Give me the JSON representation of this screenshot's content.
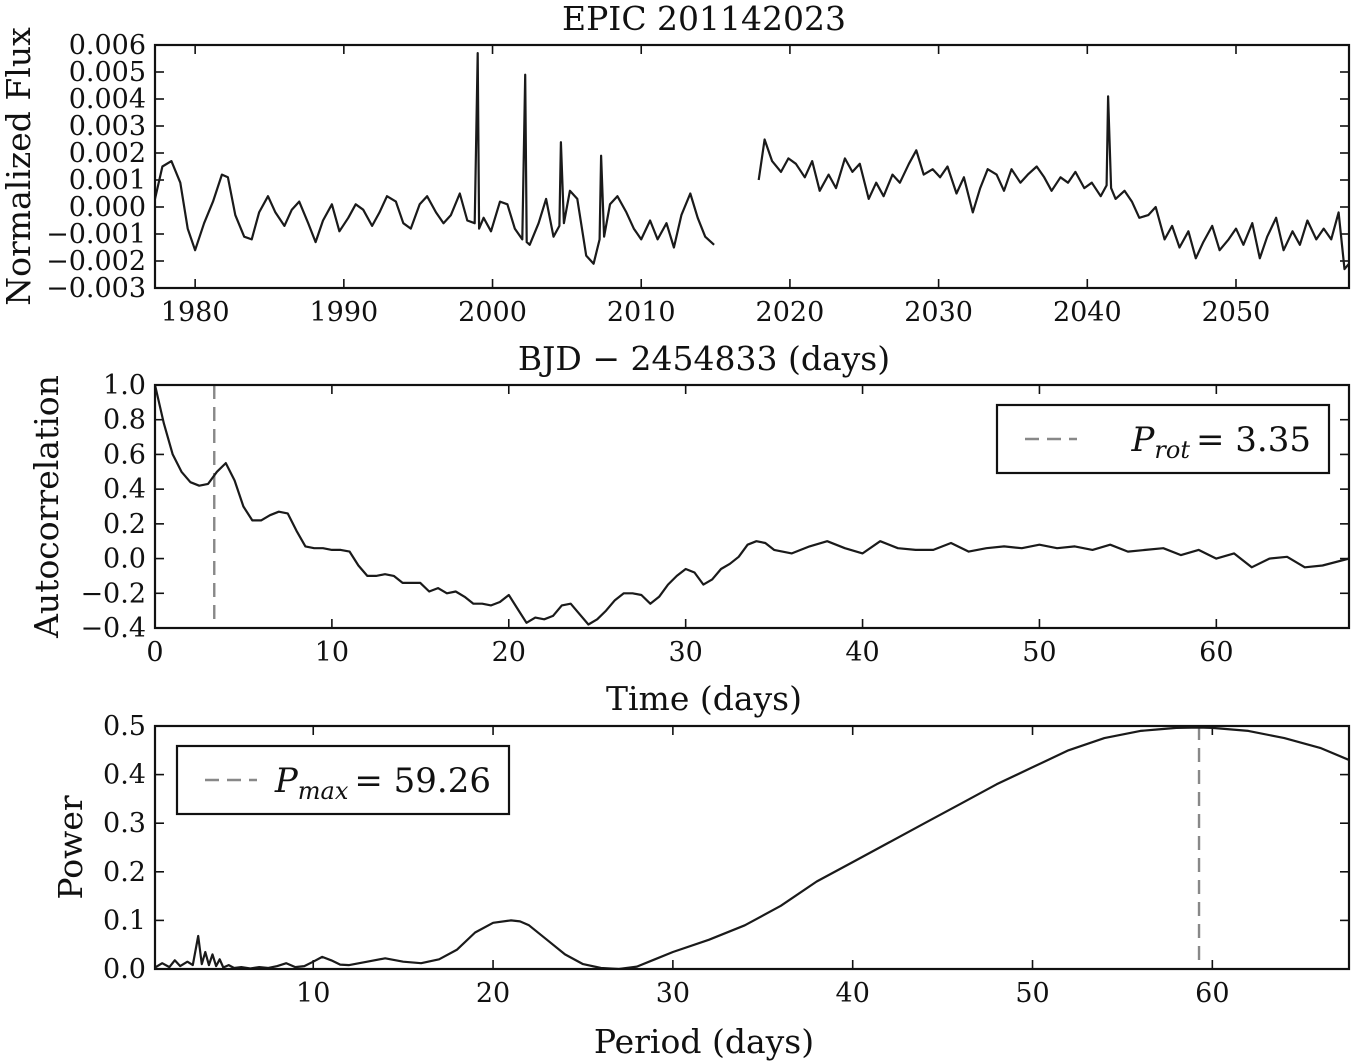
{
  "chart_data": [
    {
      "type": "line",
      "title": "EPIC 201142023",
      "xlabel": "BJD − 2454833 (days)",
      "ylabel": "Normalized Flux",
      "xlim": [
        1977.3,
        2057.6
      ],
      "ylim": [
        -0.003,
        0.006
      ],
      "xticks": [
        1980,
        1990,
        2000,
        2010,
        2020,
        2030,
        2040,
        2050
      ],
      "xtick_labels": [
        "1980",
        "1990",
        "2000",
        "2010",
        "2020",
        "2030",
        "2040",
        "2050"
      ],
      "yticks": [
        -0.003,
        -0.002,
        -0.001,
        0.0,
        0.001,
        0.002,
        0.003,
        0.004,
        0.005,
        0.006
      ],
      "ytick_labels": [
        "−0.003",
        "−0.002",
        "−0.001",
        "0.000",
        "0.001",
        "0.002",
        "0.003",
        "0.004",
        "0.005",
        "0.006"
      ],
      "series": [
        {
          "segments": [
            {
              "x": [
                1977.3,
                1977.8,
                1978.4,
                1979.0,
                1979.5,
                1980.0,
                1980.6,
                1981.2,
                1981.8,
                1982.2,
                1982.7,
                1983.3,
                1983.8,
                1984.3,
                1984.9,
                1985.4,
                1986.0,
                1986.5,
                1987.0,
                1987.6,
                1988.1,
                1988.6,
                1989.2,
                1989.7,
                1990.3,
                1990.8,
                1991.3,
                1991.9,
                1992.4,
                1992.9,
                1993.5,
                1994.0,
                1994.5,
                1995.1,
                1995.6,
                1996.2,
                1996.7,
                1997.2,
                1997.8,
                1998.3,
                1998.8,
                1999.0,
                1999.1,
                1999.4,
                1999.9,
                2000.5,
                2001.0,
                2001.5,
                2002.0,
                2002.2,
                2002.3,
                2002.5,
                2003.1,
                2003.6,
                2004.1,
                2004.5,
                2004.6,
                2004.8,
                2005.2,
                2005.7,
                2006.3,
                2006.8,
                2007.2,
                2007.3,
                2007.5,
                2007.9,
                2008.4,
                2009.0,
                2009.5,
                2010.0,
                2010.6,
                2011.1,
                2011.7,
                2012.2,
                2012.7,
                2013.3,
                2013.8,
                2014.3,
                2014.9
              ],
              "y": [
                0.0003,
                0.0015,
                0.0017,
                0.0009,
                -0.0008,
                -0.0016,
                -0.0006,
                0.0002,
                0.0012,
                0.0011,
                -0.0003,
                -0.0011,
                -0.0012,
                -0.0002,
                0.0004,
                -0.0002,
                -0.0007,
                -0.0001,
                0.0002,
                -0.0006,
                -0.0013,
                -0.0005,
                0.0001,
                -0.0009,
                -0.0004,
                0.0001,
                -0.0001,
                -0.0007,
                -0.0002,
                0.0004,
                0.0002,
                -0.0006,
                -0.0008,
                0.0001,
                0.0004,
                -0.0002,
                -0.0006,
                -0.0003,
                0.0005,
                -0.0005,
                -0.0006,
                0.0057,
                -0.0008,
                -0.0004,
                -0.0009,
                0.0002,
                0.0001,
                -0.0008,
                -0.0012,
                0.0049,
                -0.0013,
                -0.0014,
                -0.0006,
                0.0003,
                -0.0011,
                -0.0007,
                0.0024,
                -0.0006,
                0.0006,
                0.0003,
                -0.0018,
                -0.0021,
                -0.0012,
                0.0019,
                -0.0011,
                0.0001,
                0.0004,
                -0.0002,
                -0.0008,
                -0.0012,
                -0.0005,
                -0.0012,
                -0.0006,
                -0.0015,
                -0.0003,
                0.0005,
                -0.0004,
                -0.0011,
                -0.0014
              ]
            },
            {
              "x": [
                2017.9,
                2018.3,
                2018.8,
                2019.4,
                2019.9,
                2020.4,
                2021.0,
                2021.5,
                2022.0,
                2022.6,
                2023.1,
                2023.7,
                2024.2,
                2024.7,
                2025.3,
                2025.8,
                2026.3,
                2026.9,
                2027.4,
                2028.0,
                2028.5,
                2029.0,
                2029.6,
                2030.1,
                2030.6,
                2031.2,
                2031.7,
                2032.3,
                2032.8,
                2033.3,
                2033.9,
                2034.4,
                2034.9,
                2035.5,
                2036.0,
                2036.6,
                2037.1,
                2037.6,
                2038.2,
                2038.7,
                2039.2,
                2039.8,
                2040.3,
                2040.9,
                2041.3,
                2041.4,
                2041.6,
                2041.9,
                2042.5,
                2043.0,
                2043.5,
                2044.1,
                2044.6,
                2045.2,
                2045.7,
                2046.2,
                2046.8,
                2047.3,
                2047.8,
                2048.4,
                2048.9,
                2049.5,
                2050.0,
                2050.5,
                2051.1,
                2051.6,
                2052.1,
                2052.7,
                2053.2,
                2053.8,
                2054.3,
                2054.8,
                2055.4,
                2055.9,
                2056.4,
                2056.9,
                2057.3,
                2057.6
              ],
              "y": [
                0.001,
                0.0025,
                0.0017,
                0.0013,
                0.0018,
                0.0016,
                0.0011,
                0.0017,
                0.0006,
                0.0012,
                0.0007,
                0.0018,
                0.0013,
                0.0016,
                0.0003,
                0.0009,
                0.0004,
                0.0012,
                0.0009,
                0.0016,
                0.0021,
                0.0012,
                0.0014,
                0.0011,
                0.0015,
                0.0005,
                0.0011,
                -0.0002,
                0.0007,
                0.0014,
                0.0012,
                0.0006,
                0.0014,
                0.0009,
                0.0012,
                0.0015,
                0.0011,
                0.0006,
                0.0011,
                0.0009,
                0.0013,
                0.0007,
                0.0009,
                0.0004,
                0.0008,
                0.0041,
                0.0007,
                0.0003,
                0.0006,
                0.0002,
                -0.0004,
                -0.0003,
                0.0,
                -0.0012,
                -0.0007,
                -0.0015,
                -0.0009,
                -0.0019,
                -0.0013,
                -0.0007,
                -0.0016,
                -0.0012,
                -0.0008,
                -0.0014,
                -0.0006,
                -0.0019,
                -0.0011,
                -0.0004,
                -0.0016,
                -0.0009,
                -0.0014,
                -0.0005,
                -0.0012,
                -0.0008,
                -0.0012,
                -0.0002,
                -0.0023,
                -0.0021
              ]
            }
          ]
        }
      ]
    },
    {
      "type": "line",
      "xlabel": "Time (days)",
      "ylabel": "Autocorrelation",
      "xlim": [
        0,
        67.5
      ],
      "ylim": [
        -0.4,
        1.0
      ],
      "xticks": [
        0,
        10,
        20,
        30,
        40,
        50,
        60
      ],
      "xtick_labels": [
        "0",
        "10",
        "20",
        "30",
        "40",
        "50",
        "60"
      ],
      "yticks": [
        -0.4,
        -0.2,
        0.0,
        0.2,
        0.4,
        0.6,
        0.8,
        1.0
      ],
      "ytick_labels": [
        "−0.4",
        "−0.2",
        "0.0",
        "0.2",
        "0.4",
        "0.6",
        "0.8",
        "1.0"
      ],
      "series": [
        {
          "x": [
            0,
            0.5,
            1.0,
            1.5,
            2.0,
            2.5,
            3.0,
            3.5,
            4.0,
            4.5,
            5.0,
            5.5,
            6.0,
            6.5,
            7.0,
            7.5,
            8.0,
            8.5,
            9.0,
            9.5,
            10.0,
            10.5,
            11.0,
            11.5,
            12.0,
            12.5,
            13.0,
            13.5,
            14.0,
            14.5,
            15.0,
            15.5,
            16.0,
            16.5,
            17.0,
            17.5,
            18.0,
            18.5,
            19.0,
            19.5,
            20.0,
            20.5,
            21.0,
            21.5,
            22.0,
            22.5,
            23.0,
            23.5,
            24.0,
            24.5,
            25.0,
            25.5,
            26.0,
            26.5,
            27.0,
            27.5,
            28.0,
            28.5,
            29.0,
            29.5,
            30.0,
            30.5,
            31.0,
            31.5,
            32.0,
            32.5,
            33.0,
            33.5,
            34.0,
            34.5,
            35.0,
            36.0,
            37.0,
            38.0,
            39.0,
            40.0,
            41.0,
            42.0,
            43.0,
            44.0,
            45.0,
            46.0,
            47.0,
            48.0,
            49.0,
            50.0,
            51.0,
            52.0,
            53.0,
            54.0,
            55.0,
            56.0,
            57.0,
            58.0,
            59.0,
            60.0,
            61.0,
            62.0,
            63.0,
            64.0,
            65.0,
            66.0,
            67.5
          ],
          "y": [
            1.0,
            0.78,
            0.6,
            0.5,
            0.44,
            0.42,
            0.43,
            0.5,
            0.55,
            0.45,
            0.3,
            0.22,
            0.22,
            0.25,
            0.27,
            0.26,
            0.16,
            0.07,
            0.06,
            0.06,
            0.05,
            0.05,
            0.04,
            -0.04,
            -0.1,
            -0.1,
            -0.09,
            -0.1,
            -0.14,
            -0.14,
            -0.14,
            -0.19,
            -0.17,
            -0.2,
            -0.19,
            -0.22,
            -0.26,
            -0.26,
            -0.27,
            -0.25,
            -0.21,
            -0.29,
            -0.37,
            -0.34,
            -0.35,
            -0.33,
            -0.27,
            -0.26,
            -0.32,
            -0.38,
            -0.35,
            -0.3,
            -0.24,
            -0.2,
            -0.2,
            -0.21,
            -0.26,
            -0.22,
            -0.15,
            -0.1,
            -0.06,
            -0.08,
            -0.15,
            -0.12,
            -0.06,
            -0.03,
            0.01,
            0.08,
            0.1,
            0.09,
            0.05,
            0.03,
            0.07,
            0.1,
            0.06,
            0.03,
            0.1,
            0.06,
            0.05,
            0.05,
            0.09,
            0.04,
            0.06,
            0.07,
            0.06,
            0.08,
            0.06,
            0.07,
            0.05,
            0.08,
            0.04,
            0.05,
            0.06,
            0.02,
            0.05,
            0.0,
            0.03,
            -0.05,
            0.0,
            0.01,
            -0.05,
            -0.04,
            0.0
          ]
        }
      ],
      "vline": {
        "x": 3.35
      },
      "legend": {
        "symbol": "P",
        "subscript": "rot",
        "value": "= 3.35",
        "placement": "upper right"
      }
    },
    {
      "type": "line",
      "xlabel": "Period (days)",
      "ylabel": "Power",
      "xlim": [
        1.2,
        67.6
      ],
      "ylim": [
        0.0,
        0.5
      ],
      "xticks": [
        10,
        20,
        30,
        40,
        50,
        60
      ],
      "xtick_labels": [
        "10",
        "20",
        "30",
        "40",
        "50",
        "60"
      ],
      "yticks": [
        0.0,
        0.1,
        0.2,
        0.3,
        0.4,
        0.5
      ],
      "ytick_labels": [
        "0.0",
        "0.1",
        "0.2",
        "0.3",
        "0.4",
        "0.5"
      ],
      "series": [
        {
          "x": [
            1.2,
            1.6,
            2.0,
            2.3,
            2.6,
            3.0,
            3.3,
            3.6,
            3.8,
            4.0,
            4.2,
            4.4,
            4.6,
            4.8,
            5.0,
            5.3,
            5.6,
            6.0,
            6.5,
            7.0,
            7.5,
            8.0,
            8.5,
            9.0,
            9.5,
            10.0,
            10.5,
            11.0,
            11.5,
            12.0,
            13.0,
            14.0,
            15.0,
            16.0,
            17.0,
            18.0,
            19.0,
            20.0,
            21.0,
            21.5,
            22.0,
            23.0,
            24.0,
            25.0,
            26.0,
            27.0,
            28.0,
            29.0,
            30.0,
            32.0,
            34.0,
            36.0,
            38.0,
            40.0,
            42.0,
            44.0,
            46.0,
            48.0,
            50.0,
            52.0,
            54.0,
            56.0,
            57.0,
            58.0,
            59.26,
            60.0,
            62.0,
            64.0,
            66.0,
            67.6
          ],
          "y": [
            0.003,
            0.012,
            0.004,
            0.018,
            0.006,
            0.015,
            0.008,
            0.068,
            0.01,
            0.035,
            0.008,
            0.03,
            0.006,
            0.02,
            0.003,
            0.008,
            0.002,
            0.004,
            0.001,
            0.004,
            0.002,
            0.006,
            0.012,
            0.004,
            0.006,
            0.015,
            0.025,
            0.018,
            0.009,
            0.008,
            0.015,
            0.022,
            0.015,
            0.012,
            0.02,
            0.04,
            0.075,
            0.095,
            0.1,
            0.098,
            0.09,
            0.06,
            0.03,
            0.01,
            0.002,
            0.0,
            0.005,
            0.02,
            0.035,
            0.06,
            0.09,
            0.13,
            0.18,
            0.22,
            0.26,
            0.3,
            0.34,
            0.38,
            0.415,
            0.45,
            0.475,
            0.49,
            0.493,
            0.496,
            0.497,
            0.496,
            0.49,
            0.475,
            0.455,
            0.43
          ]
        }
      ],
      "vline": {
        "x": 59.26
      },
      "legend": {
        "symbol": "P",
        "subscript": "max",
        "value": "= 59.26",
        "placement": "upper left"
      }
    }
  ]
}
